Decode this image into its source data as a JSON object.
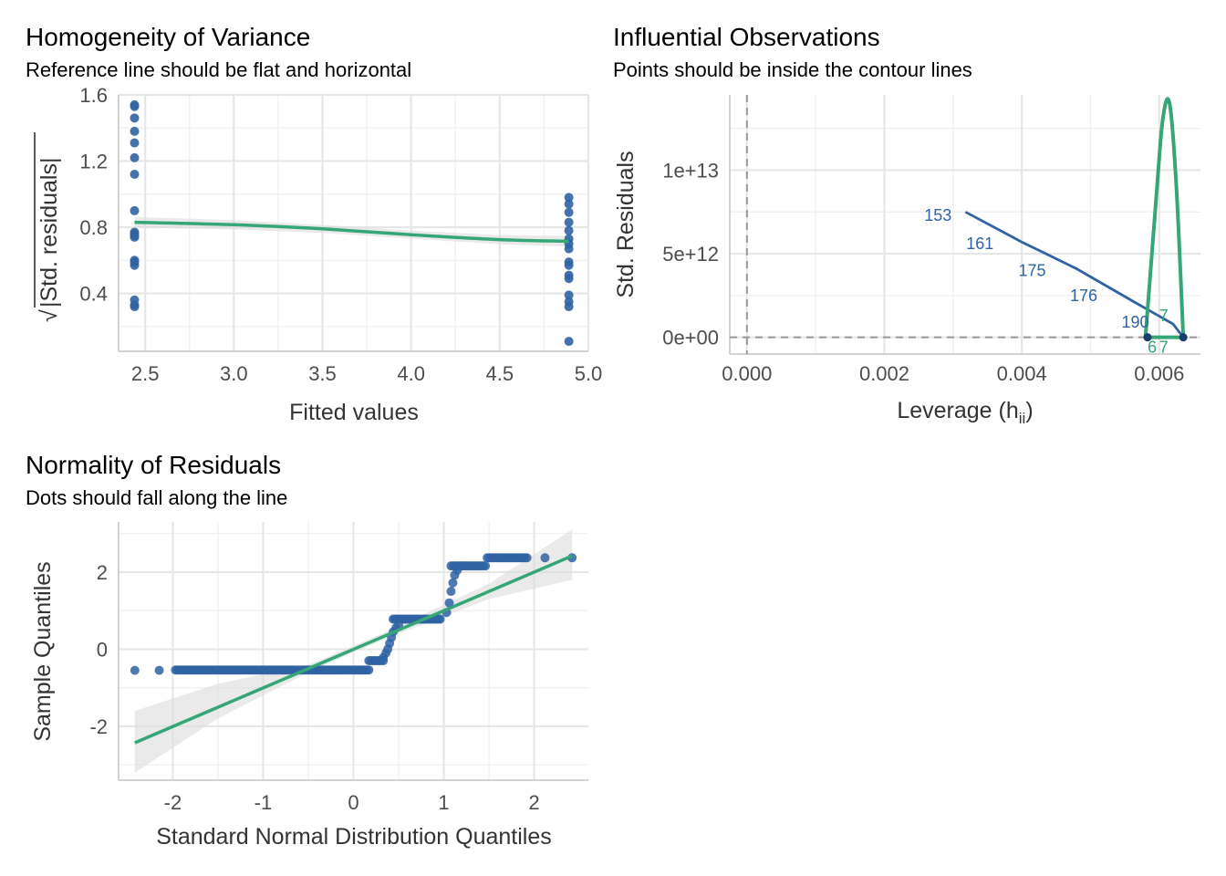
{
  "colors": {
    "points": "#2f63a3",
    "fit": "#35a676",
    "band": "#dcdcdc",
    "grid": "#e6e6e6",
    "refline": "#999999"
  },
  "chart_data": [
    {
      "id": "homogeneity",
      "type": "scatter",
      "title": "Homogeneity of Variance",
      "subtitle": "Reference line should be flat and horizontal",
      "xlabel": "Fitted values",
      "ylabel": "|Std. residuals|",
      "ylabel_prefix": "√",
      "xlim": [
        2.35,
        5.0
      ],
      "ylim": [
        0.05,
        1.6
      ],
      "xticks": [
        "2.5",
        "3.0",
        "3.5",
        "4.0",
        "4.5",
        "5.0"
      ],
      "yticks": [
        "0.4",
        "0.8",
        "1.2",
        "1.6"
      ],
      "groups": [
        {
          "x": 2.44,
          "y": [
            0.32,
            0.33,
            0.36,
            0.57,
            0.59,
            0.6,
            0.74,
            0.75,
            0.76,
            0.77,
            0.9,
            1.12,
            1.22,
            1.31,
            1.38,
            1.46,
            1.53,
            1.54
          ]
        },
        {
          "x": 4.89,
          "y": [
            0.11,
            0.32,
            0.35,
            0.39,
            0.49,
            0.51,
            0.57,
            0.59,
            0.67,
            0.7,
            0.73,
            0.78,
            0.83,
            0.89,
            0.94,
            0.98
          ]
        }
      ],
      "fit_line": {
        "x": [
          2.44,
          3.0,
          3.5,
          4.0,
          4.5,
          4.89
        ],
        "y": [
          0.83,
          0.815,
          0.79,
          0.755,
          0.725,
          0.715
        ]
      }
    },
    {
      "id": "influential",
      "type": "scatter",
      "title": "Influential Observations",
      "subtitle": "Points should be inside the contour lines",
      "xlabel": "Leverage (h",
      "xlabel_sub": "ii",
      "xlabel_suffix": ")",
      "ylabel": "Std. Residuals",
      "xlim": [
        -0.00025,
        0.0066
      ],
      "ylim": [
        -1000000000000.0,
        14500000000000.0
      ],
      "xticks": [
        "0.000",
        "0.002",
        "0.004",
        "0.006"
      ],
      "xtick_values": [
        0,
        0.002,
        0.004,
        0.006
      ],
      "yticks": [
        "0e+00",
        "5e+12",
        "1e+13"
      ],
      "ytick_values": [
        0,
        5000000000000.0,
        10000000000000.0
      ],
      "reflines": {
        "x": 0,
        "y": 0
      },
      "labels": [
        {
          "text": "153",
          "x": 0.00298,
          "y": 7300000000000.0
        },
        {
          "text": "161",
          "x": 0.00359,
          "y": 5600000000000.0
        },
        {
          "text": "175",
          "x": 0.00435,
          "y": 4000000000000.0
        },
        {
          "text": "176",
          "x": 0.0051,
          "y": 2500000000000.0
        },
        {
          "text": "190",
          "x": 0.00585,
          "y": 900000000000.0
        }
      ],
      "labels_green": [
        {
          "text": "7",
          "x": 0.006,
          "y": 1300000000000.0
        },
        {
          "text": "6",
          "x": 0.00583,
          "y": -600000000000.0
        },
        {
          "text": "7",
          "x": 0.006,
          "y": -600000000000.0
        }
      ],
      "points": [
        {
          "x": 0.00583,
          "y": 0
        },
        {
          "x": 0.00635,
          "y": 0
        }
      ],
      "fit_line": {
        "x": [
          0.00318,
          0.004,
          0.0048,
          0.0056,
          0.0062,
          0.00635
        ],
        "y": [
          7500000000000.0,
          5700000000000.0,
          4100000000000.0,
          2200000000000.0,
          800000000000.0,
          0
        ]
      },
      "contour": {
        "x": [
          0.0058,
          0.00595,
          0.00605,
          0.00615,
          0.00625,
          0.00635
        ],
        "y": [
          0,
          8000000000000.0,
          13000000000000.0,
          14000000000000.0,
          9000000000000.0,
          0
        ]
      }
    },
    {
      "id": "normality",
      "type": "scatter",
      "title": "Normality of Residuals",
      "subtitle": "Dots should fall along the line",
      "xlabel": "Standard Normal Distribution Quantiles",
      "ylabel": "Sample Quantiles",
      "xlim": [
        -2.6,
        2.6
      ],
      "ylim": [
        -3.4,
        3.3
      ],
      "xticks": [
        "-2",
        "-1",
        "0",
        "1",
        "2"
      ],
      "xtick_values": [
        -2,
        -1,
        0,
        1,
        2
      ],
      "yticks": [
        "-2",
        "0",
        "2"
      ],
      "ytick_values": [
        -2,
        0,
        2
      ],
      "fit_line": {
        "x": [
          -2.42,
          2.42
        ],
        "y": [
          -2.43,
          2.42
        ]
      },
      "band_upper": [
        [
          -2.42,
          -1.6
        ],
        [
          -1.5,
          -0.9
        ],
        [
          -0.5,
          -0.4
        ],
        [
          0.0,
          0.08
        ],
        [
          0.5,
          0.6
        ],
        [
          1.5,
          1.7
        ],
        [
          2.42,
          3.1
        ]
      ],
      "band_lower": [
        [
          -2.42,
          -3.2
        ],
        [
          -1.5,
          -1.8
        ],
        [
          -0.5,
          -0.6
        ],
        [
          0.0,
          -0.08
        ],
        [
          0.5,
          0.4
        ],
        [
          1.5,
          1.3
        ],
        [
          2.42,
          1.8
        ]
      ],
      "segments": [
        {
          "x0": -1.97,
          "x1": 0.17,
          "y": -0.54,
          "n": 95
        },
        {
          "x0": 0.17,
          "x1": 0.33,
          "y": -0.3,
          "n": 8
        },
        {
          "x0": 0.44,
          "x1": 0.96,
          "y": 0.78,
          "n": 30
        },
        {
          "x0": 1.08,
          "x1": 1.46,
          "y": 2.16,
          "n": 16
        },
        {
          "x0": 1.48,
          "x1": 1.92,
          "y": 2.37,
          "n": 20
        }
      ],
      "extra_points": [
        [
          -2.42,
          -0.55
        ],
        [
          -2.15,
          -0.55
        ],
        [
          2.12,
          2.37
        ],
        [
          2.42,
          2.37
        ],
        [
          0.33,
          -0.22
        ],
        [
          0.36,
          -0.1
        ],
        [
          0.38,
          0.0
        ],
        [
          0.4,
          0.15
        ],
        [
          0.42,
          0.3
        ],
        [
          0.44,
          0.45
        ],
        [
          0.47,
          0.55
        ],
        [
          0.5,
          0.62
        ],
        [
          1.03,
          0.95
        ],
        [
          1.06,
          1.2
        ],
        [
          1.08,
          1.5
        ],
        [
          1.1,
          1.72
        ],
        [
          1.12,
          1.92
        ],
        [
          1.15,
          2.05
        ]
      ]
    }
  ]
}
